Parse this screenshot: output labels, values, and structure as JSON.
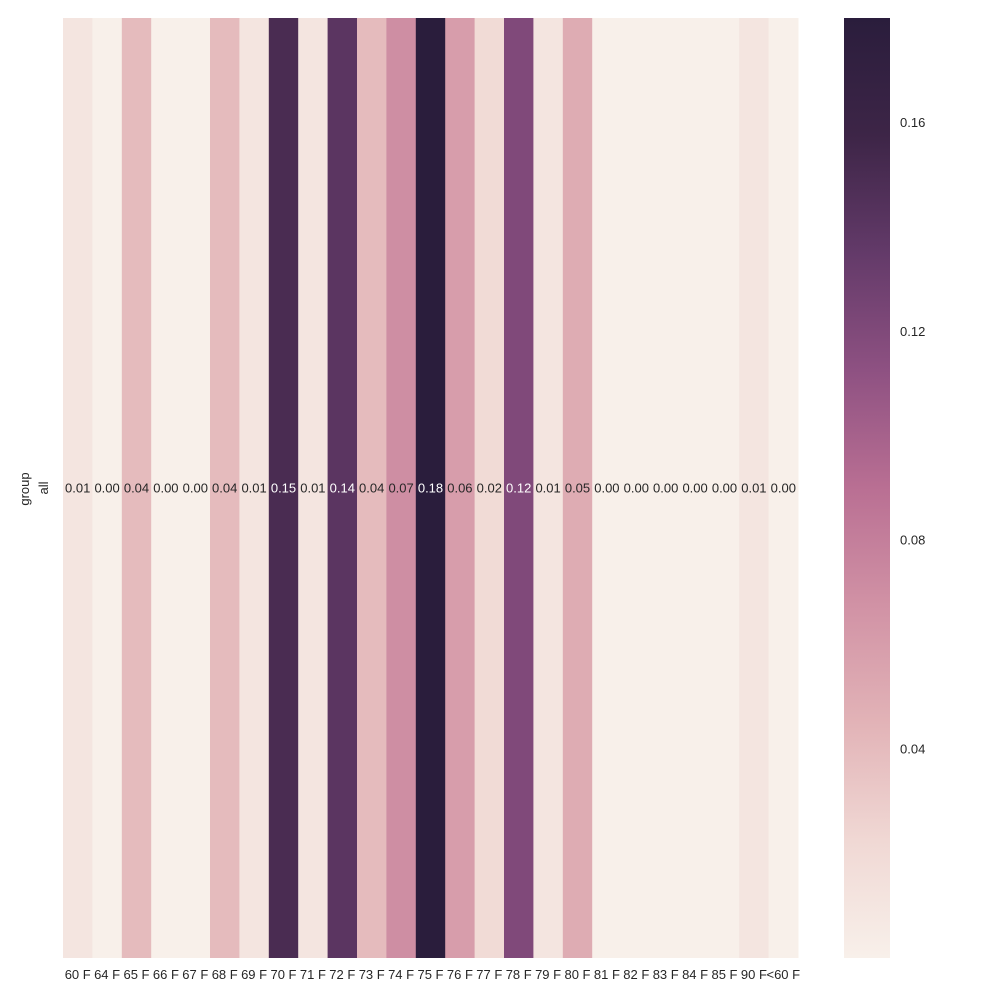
{
  "chart_data": {
    "type": "heatmap",
    "title": "",
    "xlabel": "",
    "ylabel": "group",
    "rows": [
      "all"
    ],
    "columns": [
      "60 F",
      "64 F",
      "65 F",
      "66 F",
      "67 F",
      "68 F",
      "69 F",
      "70 F",
      "71 F",
      "72 F",
      "73 F",
      "74 F",
      "75 F",
      "76 F",
      "77 F",
      "78 F",
      "79 F",
      "80 F",
      "81 F",
      "82 F",
      "83 F",
      "84 F",
      "85 F",
      "90 F",
      "<60 F"
    ],
    "values": [
      [
        0.01,
        0.0,
        0.04,
        0.0,
        0.0,
        0.04,
        0.01,
        0.15,
        0.01,
        0.14,
        0.04,
        0.07,
        0.18,
        0.06,
        0.02,
        0.12,
        0.01,
        0.05,
        0.0,
        0.0,
        0.0,
        0.0,
        0.0,
        0.01,
        0.0
      ]
    ],
    "annotations": [
      "0.01",
      "0.00",
      "0.04",
      "0.00",
      "0.00",
      "0.04",
      "0.01",
      "0.15",
      "0.01",
      "0.14",
      "0.04",
      "0.07",
      "0.18",
      "0.06",
      "0.02",
      "0.12",
      "0.01",
      "0.05",
      "0.00",
      "0.00",
      "0.00",
      "0.00",
      "0.00",
      "0.01",
      "0.00"
    ],
    "colorbar": {
      "min": 0.0,
      "max": 0.18,
      "ticks": [
        0.04,
        0.08,
        0.12,
        0.16
      ],
      "tick_labels": [
        "0.04",
        "0.08",
        "0.12",
        "0.16"
      ]
    },
    "colormap": [
      "#f8f0ea",
      "#f0d8d4",
      "#e2b3b7",
      "#d192a5",
      "#b96f93",
      "#8e5182",
      "#633a69",
      "#3d2547",
      "#2a1d3c"
    ],
    "grid": false,
    "legend": "none"
  }
}
